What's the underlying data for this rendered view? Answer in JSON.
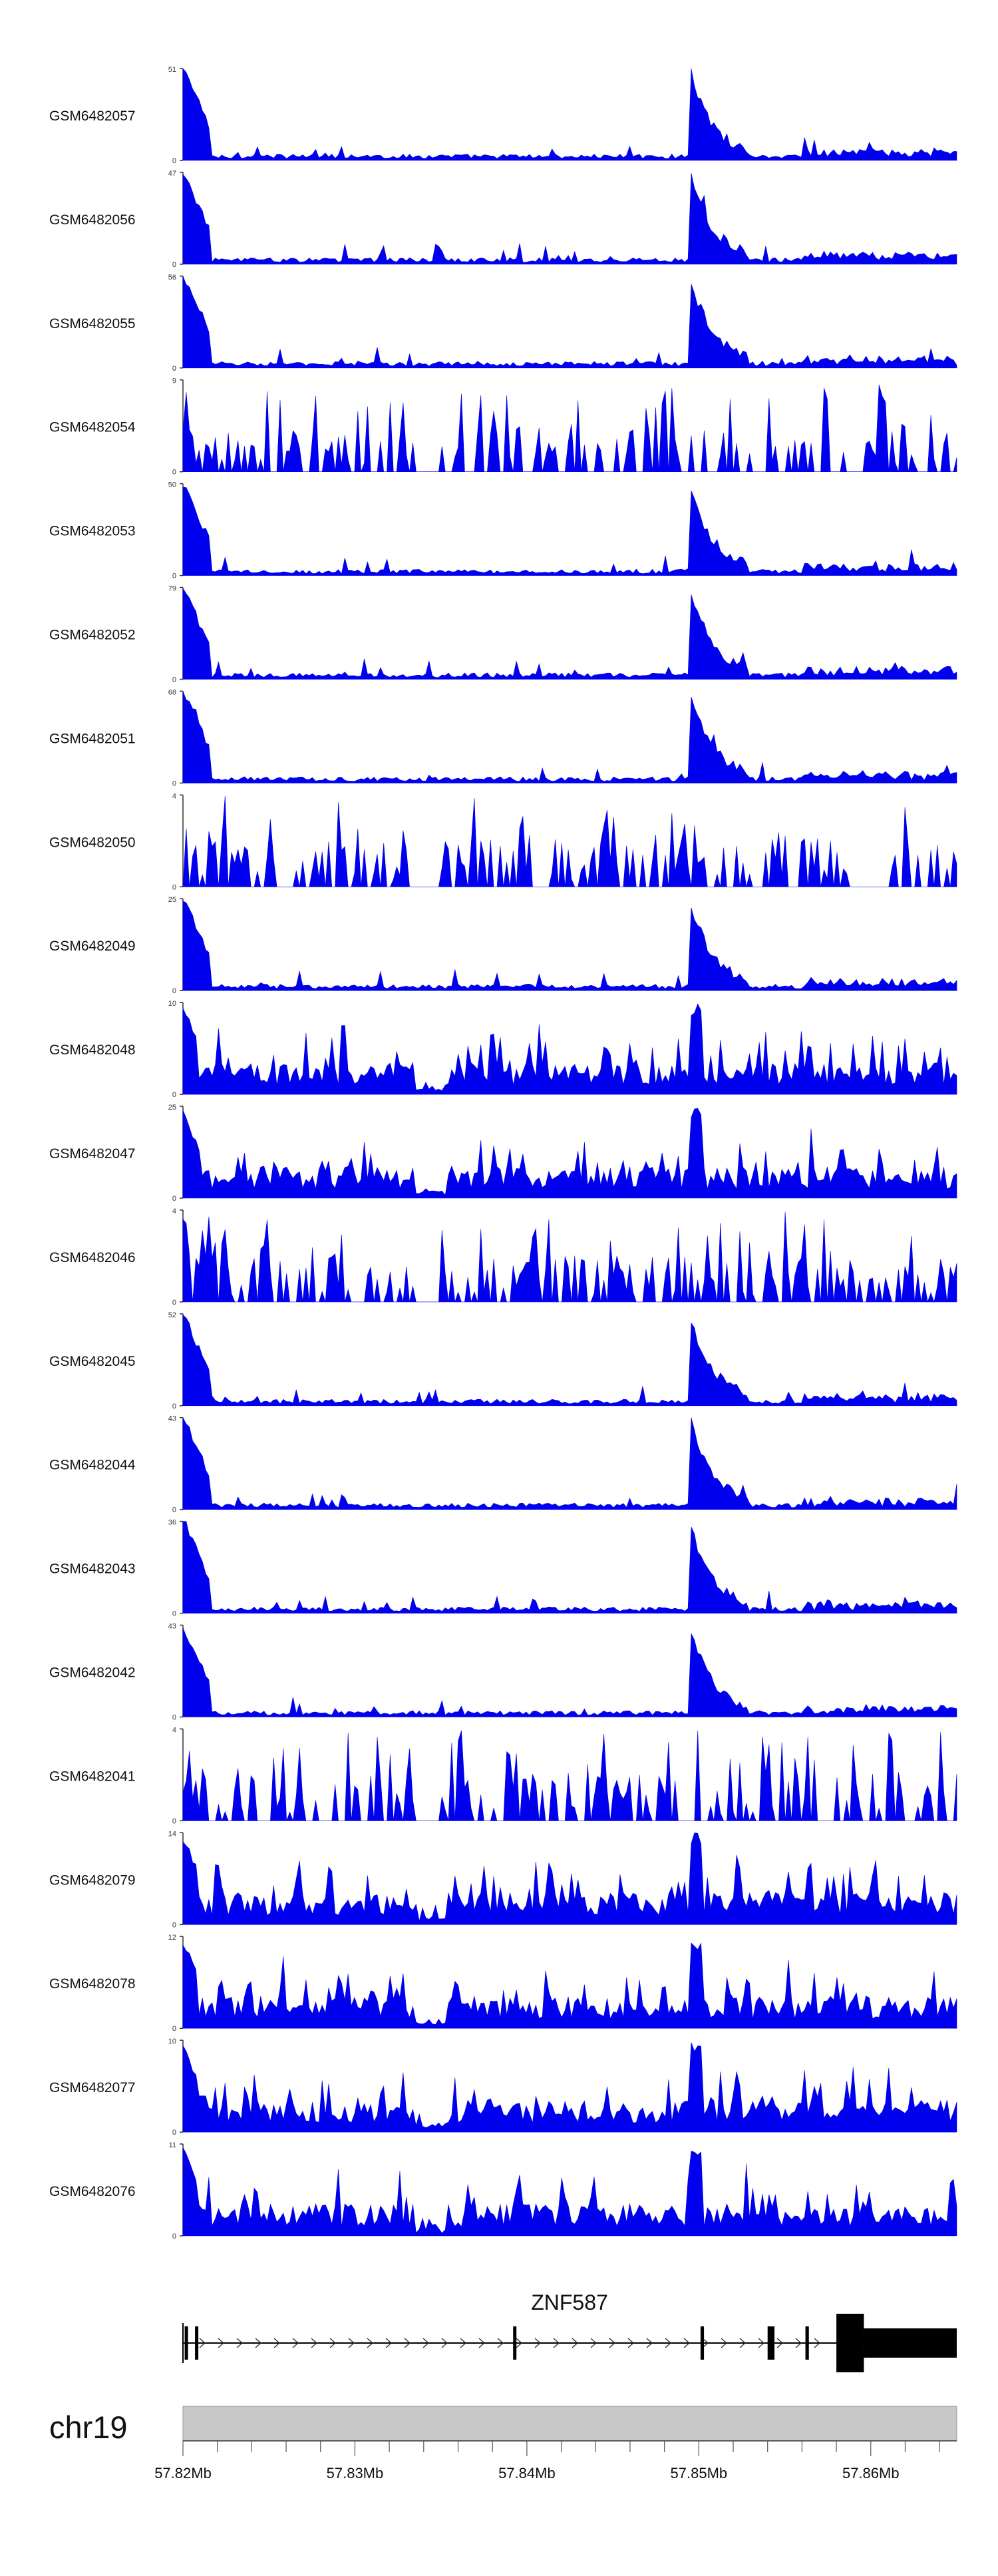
{
  "chart_data": {
    "type": "area",
    "chromosome": "chr19",
    "x_range": [
      57.82,
      57.865
    ],
    "x_ticks": [
      57.82,
      57.83,
      57.84,
      57.85,
      57.86
    ],
    "x_tick_labels": [
      "57.82Mb",
      "57.83Mb",
      "57.84Mb",
      "57.85Mb",
      "57.86Mb"
    ],
    "color": "#0000ee",
    "tracks": [
      {
        "name": "GSM6482057",
        "ymax": 51,
        "ymax_label": "51",
        "ymin_label": "0",
        "profile": "peaked"
      },
      {
        "name": "GSM6482056",
        "ymax": 47,
        "ymax_label": "47",
        "ymin_label": "0",
        "profile": "peaked"
      },
      {
        "name": "GSM6482055",
        "ymax": 56,
        "ymax_label": "56",
        "ymin_label": "0",
        "profile": "peaked"
      },
      {
        "name": "GSM6482054",
        "ymax": 9,
        "ymax_label": "9",
        "ymin_label": "0",
        "profile": "spiky"
      },
      {
        "name": "GSM6482053",
        "ymax": 50,
        "ymax_label": "50",
        "ymin_label": "0",
        "profile": "peaked"
      },
      {
        "name": "GSM6482052",
        "ymax": 79,
        "ymax_label": "79",
        "ymin_label": "0",
        "profile": "peaked"
      },
      {
        "name": "GSM6482051",
        "ymax": 68,
        "ymax_label": "68",
        "ymin_label": "0",
        "profile": "peaked"
      },
      {
        "name": "GSM6482050",
        "ymax": 4,
        "ymax_label": "4",
        "ymin_label": "0",
        "profile": "spiky"
      },
      {
        "name": "GSM6482049",
        "ymax": 25,
        "ymax_label": "25",
        "ymin_label": "0",
        "profile": "peaked"
      },
      {
        "name": "GSM6482048",
        "ymax": 10,
        "ymax_label": "10",
        "ymin_label": "0",
        "profile": "dense"
      },
      {
        "name": "GSM6482047",
        "ymax": 25,
        "ymax_label": "25",
        "ymin_label": "0",
        "profile": "dense"
      },
      {
        "name": "GSM6482046",
        "ymax": 4,
        "ymax_label": "4",
        "ymin_label": "0",
        "profile": "spiky"
      },
      {
        "name": "GSM6482045",
        "ymax": 52,
        "ymax_label": "52",
        "ymin_label": "0",
        "profile": "peaked"
      },
      {
        "name": "GSM6482044",
        "ymax": 43,
        "ymax_label": "43",
        "ymin_label": "0",
        "profile": "peaked"
      },
      {
        "name": "GSM6482043",
        "ymax": 36,
        "ymax_label": "36",
        "ymin_label": "0",
        "profile": "peaked"
      },
      {
        "name": "GSM6482042",
        "ymax": 43,
        "ymax_label": "43",
        "ymin_label": "0",
        "profile": "peaked"
      },
      {
        "name": "GSM6482041",
        "ymax": 4,
        "ymax_label": "4",
        "ymin_label": "0",
        "profile": "spiky"
      },
      {
        "name": "GSM6482079",
        "ymax": 14,
        "ymax_label": "14",
        "ymin_label": "0",
        "profile": "dense"
      },
      {
        "name": "GSM6482078",
        "ymax": 12,
        "ymax_label": "12",
        "ymin_label": "0",
        "profile": "dense"
      },
      {
        "name": "GSM6482077",
        "ymax": 10,
        "ymax_label": "10",
        "ymin_label": "0",
        "profile": "dense"
      },
      {
        "name": "GSM6482076",
        "ymax": 11,
        "ymax_label": "11",
        "ymin_label": "0",
        "profile": "dense"
      }
    ],
    "gene": {
      "name": "ZNF587",
      "start": 57.82,
      "end": 57.865,
      "strand": "+",
      "exons": [
        [
          57.8201,
          57.8202
        ],
        [
          57.8207,
          57.8208
        ],
        [
          57.8392,
          57.8393
        ],
        [
          57.8501,
          57.8503
        ],
        [
          57.854,
          57.8544
        ],
        [
          57.8562,
          57.8564
        ]
      ],
      "utr_blocks": [
        [
          57.858,
          57.8596
        ]
      ],
      "cds_end_block": [
        57.8596,
        57.865
      ]
    }
  }
}
